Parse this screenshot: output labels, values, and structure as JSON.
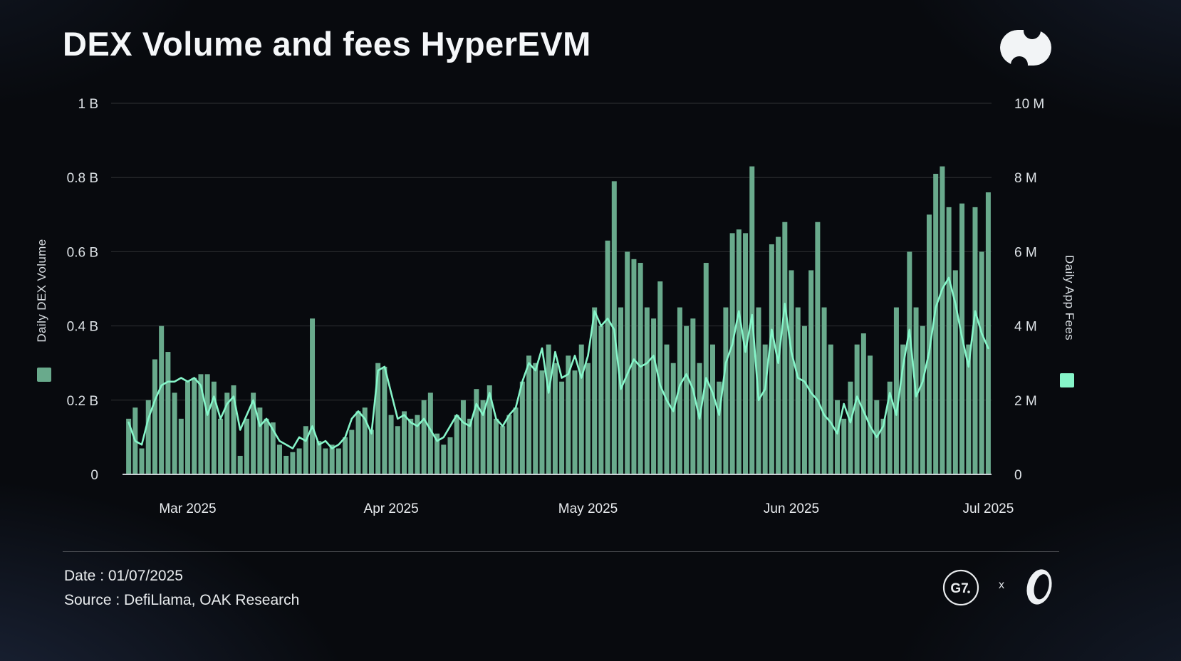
{
  "header": {
    "title": "DEX Volume and fees HyperEVM"
  },
  "footer": {
    "date_label": "Date : 01/07/2025",
    "source_label": "Source : DefiLlama, OAK Research",
    "g7_text": "G7",
    "x_separator": "x"
  },
  "chart_data": {
    "type": "combo-bar-line",
    "title": "DEX Volume and fees HyperEVM",
    "start_date": "2025-02-20",
    "interval": "daily",
    "grid": true,
    "x_tick_labels": [
      "Mar 2025",
      "Apr 2025",
      "May 2025",
      "Jun 2025",
      "Jul 2025"
    ],
    "x_tick_indices": [
      9,
      40,
      70,
      101,
      131
    ],
    "left_axis": {
      "title": "Daily DEX Volume",
      "ticks": [
        "0",
        "0.2 B",
        "0.4 B",
        "0.6 B",
        "0.8 B",
        "1 B"
      ],
      "tick_values": [
        0,
        0.2,
        0.4,
        0.6,
        0.8,
        1.0
      ],
      "max": 1.0,
      "unit": "B"
    },
    "right_axis": {
      "title": "Daily App Fees",
      "ticks": [
        "0",
        "2 M",
        "4 M",
        "6 M",
        "8 M",
        "10 M"
      ],
      "tick_values": [
        0,
        2,
        4,
        6,
        8,
        10
      ],
      "max": 10,
      "unit": "M"
    },
    "series": [
      {
        "name": "Daily DEX Volume",
        "type": "bar",
        "axis": "left",
        "unit": "B",
        "color": "#69aa8c",
        "values": [
          0.15,
          0.18,
          0.07,
          0.2,
          0.31,
          0.4,
          0.33,
          0.22,
          0.15,
          0.25,
          0.26,
          0.27,
          0.27,
          0.25,
          0.15,
          0.22,
          0.24,
          0.05,
          0.15,
          0.22,
          0.18,
          0.15,
          0.14,
          0.08,
          0.05,
          0.06,
          0.07,
          0.13,
          0.42,
          0.09,
          0.07,
          0.08,
          0.07,
          0.1,
          0.12,
          0.17,
          0.18,
          0.12,
          0.3,
          0.29,
          0.16,
          0.13,
          0.17,
          0.15,
          0.16,
          0.2,
          0.22,
          0.11,
          0.08,
          0.1,
          0.16,
          0.2,
          0.15,
          0.23,
          0.2,
          0.24,
          0.15,
          0.13,
          0.16,
          0.18,
          0.25,
          0.32,
          0.3,
          0.28,
          0.35,
          0.3,
          0.25,
          0.32,
          0.28,
          0.35,
          0.3,
          0.45,
          0.4,
          0.63,
          0.79,
          0.45,
          0.6,
          0.58,
          0.57,
          0.45,
          0.42,
          0.52,
          0.35,
          0.3,
          0.45,
          0.4,
          0.42,
          0.3,
          0.57,
          0.35,
          0.25,
          0.45,
          0.65,
          0.66,
          0.65,
          0.83,
          0.45,
          0.35,
          0.62,
          0.64,
          0.68,
          0.55,
          0.45,
          0.4,
          0.55,
          0.68,
          0.45,
          0.35,
          0.2,
          0.15,
          0.25,
          0.35,
          0.38,
          0.32,
          0.2,
          0.15,
          0.25,
          0.45,
          0.35,
          0.6,
          0.45,
          0.4,
          0.7,
          0.81,
          0.83,
          0.72,
          0.55,
          0.73,
          0.35,
          0.72,
          0.6,
          0.76
        ]
      },
      {
        "name": "Daily App Fees",
        "type": "line",
        "axis": "right",
        "unit": "M",
        "color": "#86f5c9",
        "values": [
          1.4,
          0.9,
          0.8,
          1.5,
          2.0,
          2.4,
          2.5,
          2.5,
          2.6,
          2.5,
          2.6,
          2.4,
          1.6,
          2.1,
          1.5,
          1.9,
          2.1,
          1.2,
          1.6,
          2.0,
          1.3,
          1.5,
          1.2,
          0.9,
          0.8,
          0.7,
          1.0,
          0.9,
          1.3,
          0.8,
          0.9,
          0.7,
          0.8,
          1.0,
          1.5,
          1.7,
          1.5,
          1.1,
          2.8,
          2.9,
          2.2,
          1.5,
          1.6,
          1.4,
          1.3,
          1.5,
          1.2,
          0.9,
          1.0,
          1.3,
          1.6,
          1.4,
          1.3,
          1.9,
          1.6,
          2.2,
          1.5,
          1.3,
          1.6,
          1.8,
          2.5,
          3.0,
          2.8,
          3.4,
          2.2,
          3.3,
          2.6,
          2.7,
          3.2,
          2.6,
          3.2,
          4.4,
          4.0,
          4.2,
          3.9,
          2.3,
          2.7,
          3.1,
          2.9,
          3.0,
          3.2,
          2.4,
          2.0,
          1.7,
          2.4,
          2.7,
          2.3,
          1.5,
          2.6,
          2.2,
          1.6,
          3.0,
          3.5,
          4.4,
          3.3,
          4.3,
          2.0,
          2.3,
          3.9,
          3.0,
          4.6,
          3.3,
          2.6,
          2.5,
          2.2,
          2.0,
          1.6,
          1.4,
          1.1,
          1.9,
          1.4,
          2.1,
          1.7,
          1.3,
          1.0,
          1.3,
          2.2,
          1.6,
          2.9,
          3.9,
          2.1,
          2.5,
          3.3,
          4.5,
          5.0,
          5.3,
          4.6,
          3.7,
          2.9,
          4.4,
          3.8,
          3.4
        ]
      }
    ]
  }
}
